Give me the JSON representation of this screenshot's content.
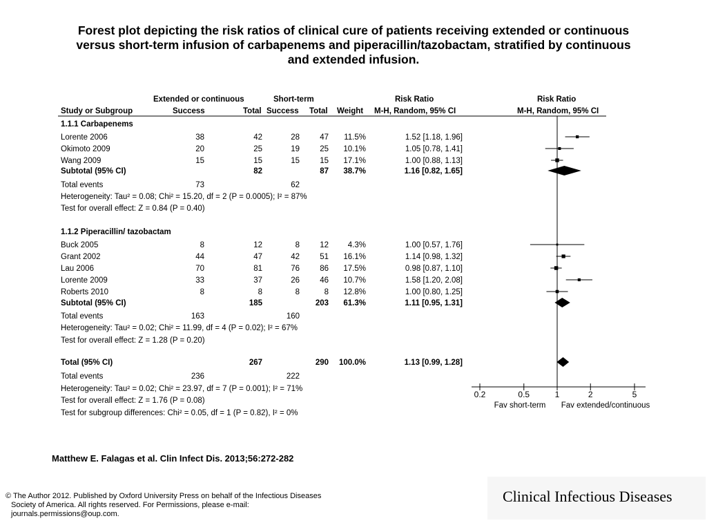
{
  "title": {
    "line1": "Forest plot depicting the risk ratios of clinical cure of patients receiving extended or continuous",
    "line2": "versus short-term infusion of carbapenems and piperacillin/tazobactam, stratified by continuous",
    "line3": "and extended infusion."
  },
  "headers": {
    "group1": "Extended or continuous",
    "group2": "Short-term",
    "rr_text": "Risk Ratio",
    "rr_plot": "Risk Ratio",
    "study": "Study or Subgroup",
    "success1": "Success",
    "total1": "Total",
    "success2": "Success",
    "total2": "Total",
    "weight": "Weight",
    "method_text": "M-H, Random, 95% CI",
    "method_plot": "M-H, Random, 95% CI"
  },
  "chart_data": {
    "type": "forest",
    "scale": "log",
    "xlim": [
      0.2,
      5
    ],
    "x_ticks": [
      "0.2",
      "0.5",
      "1",
      "2",
      "5"
    ],
    "x_label_left": "Fav short-term",
    "x_label_right": "Fav extended/continuous",
    "null_line": 1,
    "subgroups": [
      {
        "name": "1.1.1 Carbapenems",
        "studies": [
          {
            "study": "Lorente 2006",
            "e_success": "38",
            "e_total": "42",
            "c_success": "28",
            "c_total": "47",
            "weight": "11.5%",
            "rr_text": "1.52 [1.18, 1.96]",
            "rr": 1.52,
            "lo": 1.18,
            "hi": 1.96
          },
          {
            "study": "Okimoto 2009",
            "e_success": "20",
            "e_total": "25",
            "c_success": "19",
            "c_total": "25",
            "weight": "10.1%",
            "rr_text": "1.05 [0.78, 1.41]",
            "rr": 1.05,
            "lo": 0.78,
            "hi": 1.41
          },
          {
            "study": "Wang 2009",
            "e_success": "15",
            "e_total": "15",
            "c_success": "15",
            "c_total": "15",
            "weight": "17.1%",
            "rr_text": "1.00 [0.88, 1.13]",
            "rr": 1.0,
            "lo": 0.88,
            "hi": 1.13
          }
        ],
        "subtotal": {
          "label": "Subtotal (95% CI)",
          "e_total": "82",
          "c_total": "87",
          "weight": "38.7%",
          "rr_text": "1.16 [0.82, 1.65]",
          "rr": 1.16,
          "lo": 0.82,
          "hi": 1.65
        },
        "events": {
          "label": "Total events",
          "e": "73",
          "c": "62"
        },
        "heterogeneity": "Heterogeneity: Tau² = 0.08; Chi² = 15.20, df = 2 (P = 0.0005); I² = 87%",
        "overall": "Test for overall effect: Z = 0.84 (P = 0.40)"
      },
      {
        "name": "1.1.2 Piperacillin/ tazobactam",
        "studies": [
          {
            "study": "Buck 2005",
            "e_success": "8",
            "e_total": "12",
            "c_success": "8",
            "c_total": "12",
            "weight": "4.3%",
            "rr_text": "1.00 [0.57, 1.76]",
            "rr": 1.0,
            "lo": 0.57,
            "hi": 1.76
          },
          {
            "study": "Grant 2002",
            "e_success": "44",
            "e_total": "47",
            "c_success": "42",
            "c_total": "51",
            "weight": "16.1%",
            "rr_text": "1.14 [0.98, 1.32]",
            "rr": 1.14,
            "lo": 0.98,
            "hi": 1.32
          },
          {
            "study": "Lau 2006",
            "e_success": "70",
            "e_total": "81",
            "c_success": "76",
            "c_total": "86",
            "weight": "17.5%",
            "rr_text": "0.98 [0.87, 1.10]",
            "rr": 0.98,
            "lo": 0.87,
            "hi": 1.1
          },
          {
            "study": "Lorente 2009",
            "e_success": "33",
            "e_total": "37",
            "c_success": "26",
            "c_total": "46",
            "weight": "10.7%",
            "rr_text": "1.58 [1.20, 2.08]",
            "rr": 1.58,
            "lo": 1.2,
            "hi": 2.08
          },
          {
            "study": "Roberts 2010",
            "e_success": "8",
            "e_total": "8",
            "c_success": "8",
            "c_total": "8",
            "weight": "12.8%",
            "rr_text": "1.00 [0.80, 1.25]",
            "rr": 1.0,
            "lo": 0.8,
            "hi": 1.25
          }
        ],
        "subtotal": {
          "label": "Subtotal (95% CI)",
          "e_total": "185",
          "c_total": "203",
          "weight": "61.3%",
          "rr_text": "1.11 [0.95, 1.31]",
          "rr": 1.11,
          "lo": 0.95,
          "hi": 1.31
        },
        "events": {
          "label": "Total events",
          "e": "163",
          "c": "160"
        },
        "heterogeneity": "Heterogeneity: Tau² = 0.02; Chi² = 11.99, df = 4 (P = 0.02); I² = 67%",
        "overall": "Test for overall effect: Z = 1.28 (P = 0.20)"
      }
    ],
    "total": {
      "label": "Total (95% CI)",
      "e_total": "267",
      "c_total": "290",
      "weight": "100.0%",
      "rr_text": "1.13 [0.99, 1.28]",
      "rr": 1.13,
      "lo": 0.99,
      "hi": 1.28
    },
    "total_events": {
      "label": "Total events",
      "e": "236",
      "c": "222"
    },
    "total_heterogeneity": "Heterogeneity: Tau² = 0.02; Chi² = 23.97, df = 7 (P = 0.001); I² = 71%",
    "total_overall": "Test for overall effect: Z = 1.76 (P = 0.08)",
    "subgroup_diff": "Test for subgroup differences: Chi² = 0.05, df = 1 (P = 0.82), I² = 0%"
  },
  "citation": "Matthew E. Falagas et al. Clin Infect Dis. 2013;56:272-282",
  "copyright": {
    "line1": "© The Author 2012. Published by Oxford University Press on behalf of the Infectious Diseases",
    "line2": "Society of America. All rights reserved. For Permissions, please e-mail:",
    "line3": "journals.permissions@oup.com."
  },
  "journal": "Clinical Infectious Diseases"
}
